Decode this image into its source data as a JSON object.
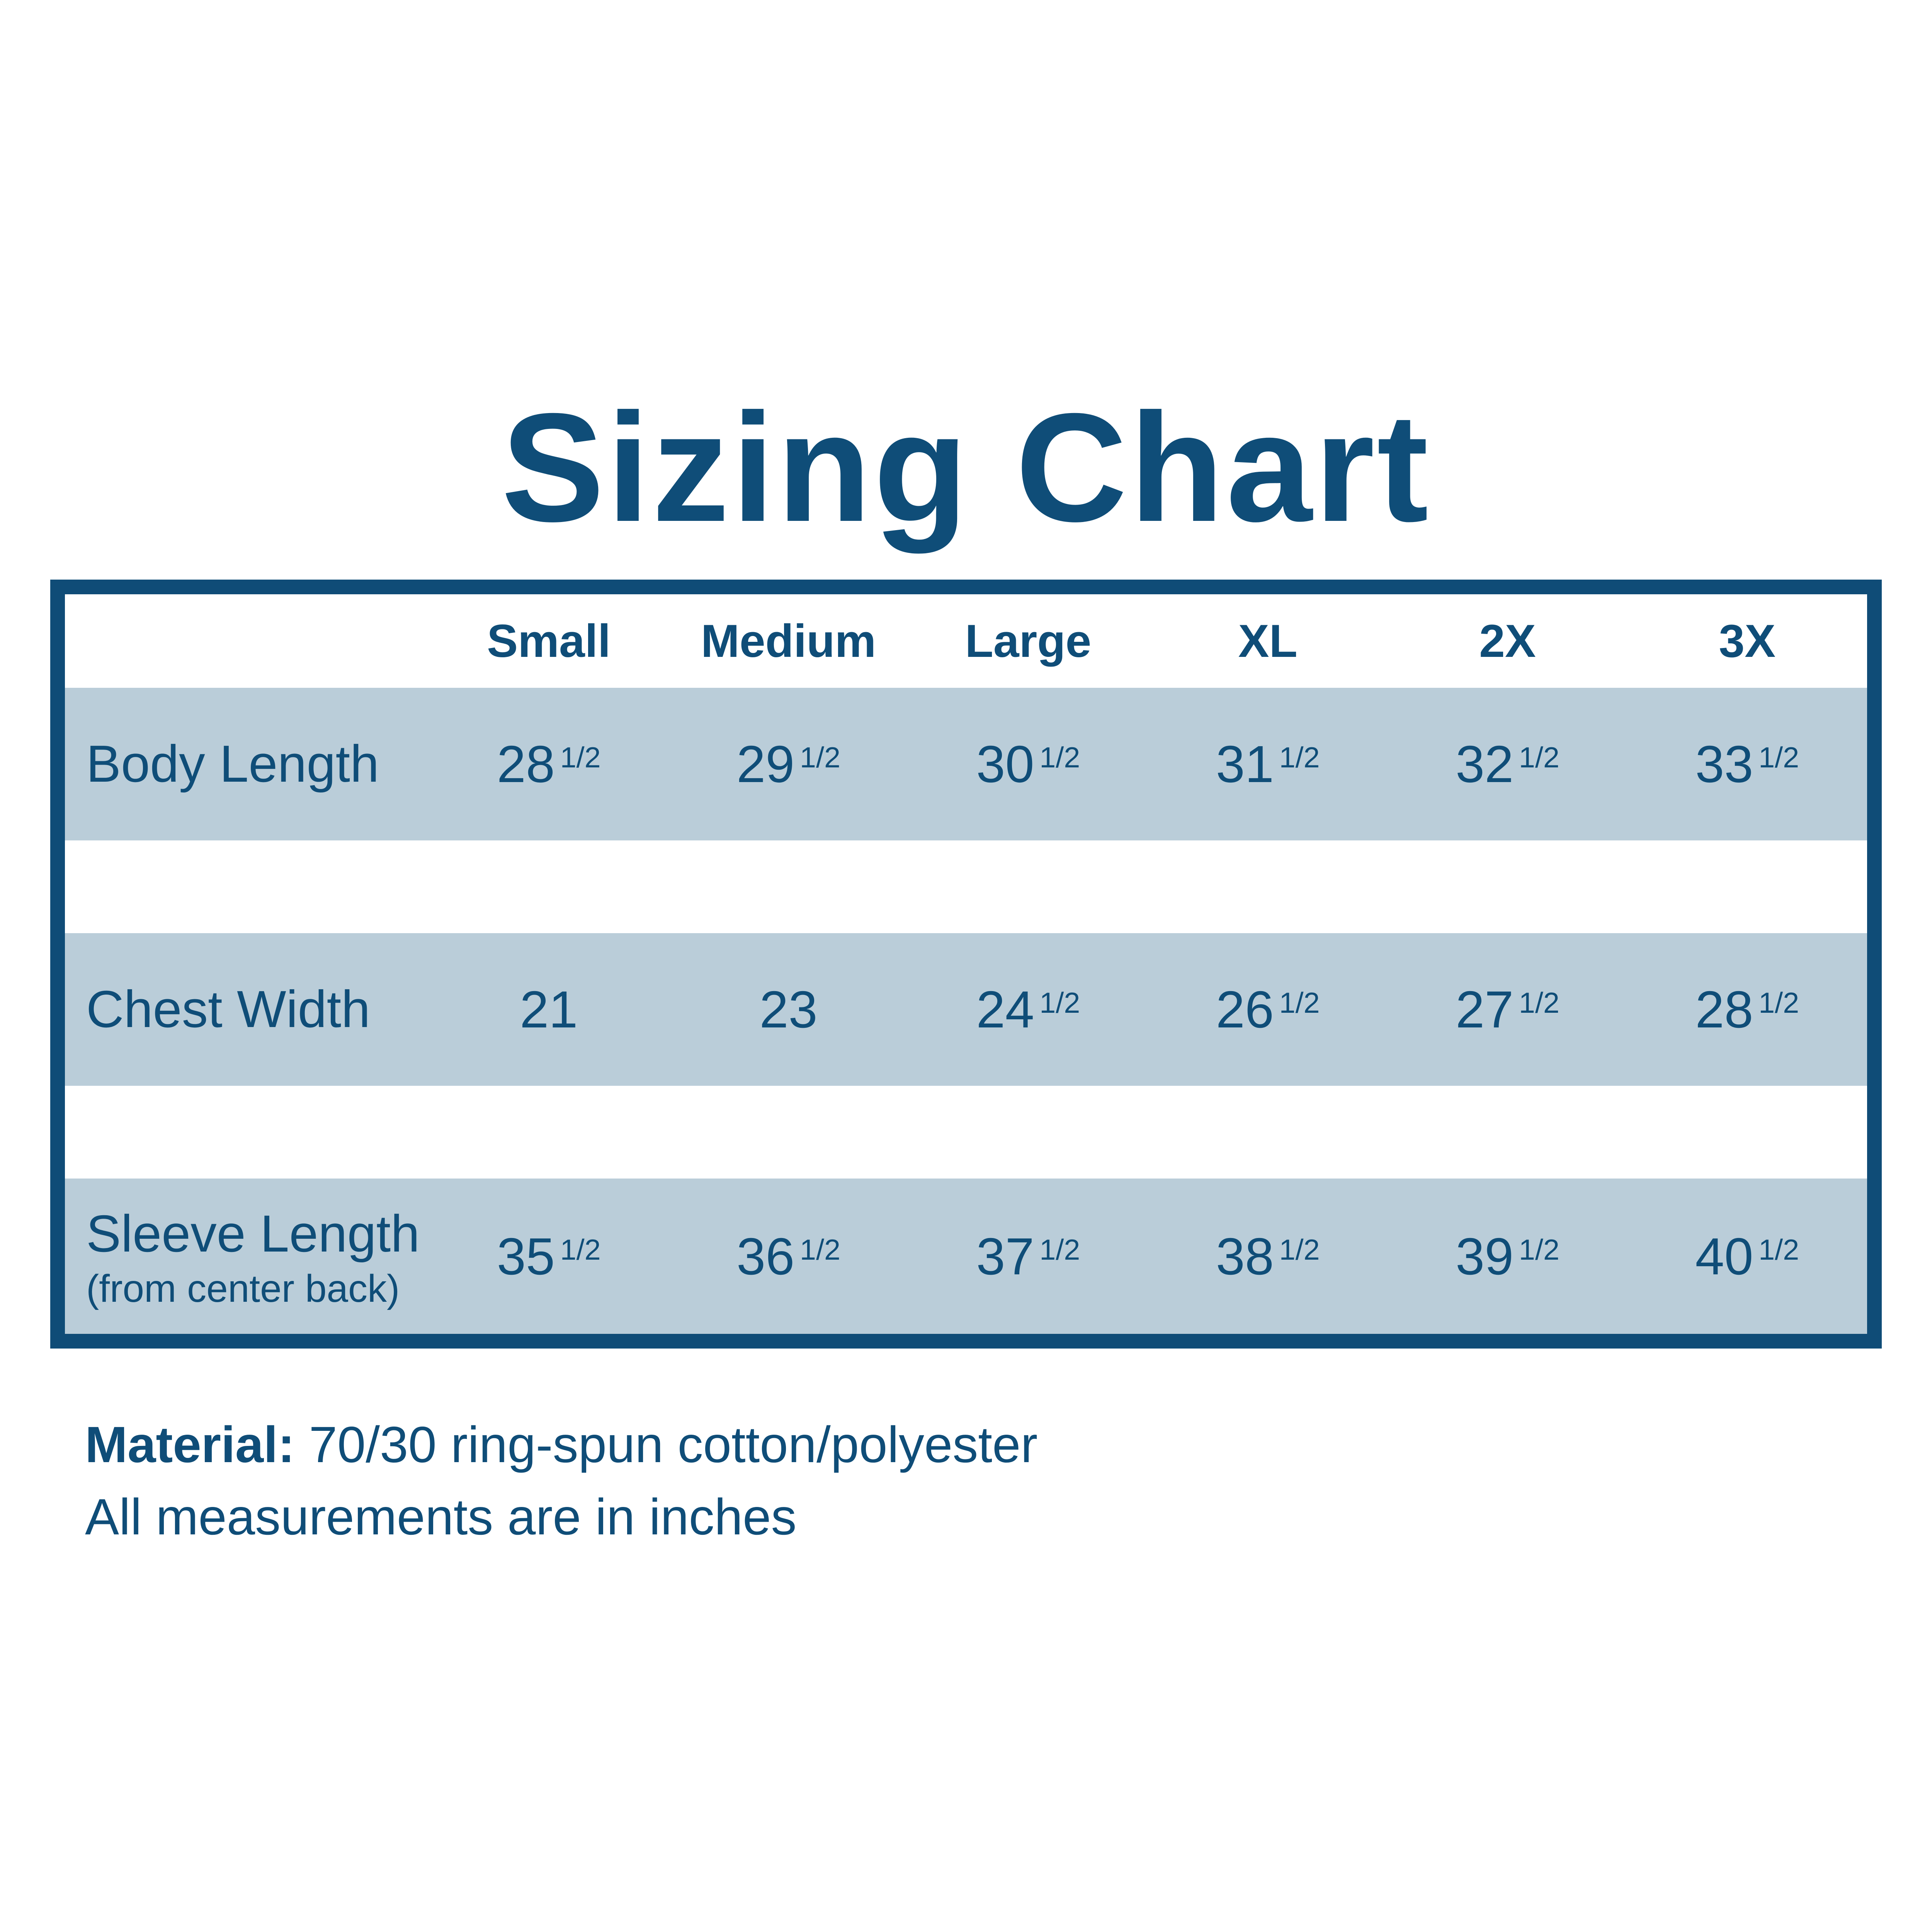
{
  "title": {
    "text": "Sizing Chart"
  },
  "colors": {
    "dark_blue": "#0F4D78",
    "border_blue": "#0F4C77",
    "row_light_blue": "#BACDD9",
    "background": "#FFFFFF"
  },
  "table": {
    "header": [
      "Small",
      "Medium",
      "Large",
      "XL",
      "2X",
      "3X"
    ],
    "rows": [
      {
        "label": "Body Length",
        "sublabel": "",
        "cells": [
          {
            "n": "28",
            "f": "1/2"
          },
          {
            "n": "29",
            "f": "1/2"
          },
          {
            "n": "30",
            "f": "1/2"
          },
          {
            "n": "31",
            "f": "1/2"
          },
          {
            "n": "32",
            "f": "1/2"
          },
          {
            "n": "33",
            "f": "1/2"
          }
        ]
      },
      {
        "label": "Chest Width",
        "sublabel": "",
        "cells": [
          {
            "n": "21",
            "f": ""
          },
          {
            "n": "23",
            "f": ""
          },
          {
            "n": "24",
            "f": "1/2"
          },
          {
            "n": "26",
            "f": "1/2"
          },
          {
            "n": "27",
            "f": "1/2"
          },
          {
            "n": "28",
            "f": "1/2"
          }
        ]
      },
      {
        "label": "Sleeve Length",
        "sublabel": "(from center back)",
        "cells": [
          {
            "n": "35",
            "f": "1/2"
          },
          {
            "n": "36",
            "f": "1/2"
          },
          {
            "n": "37",
            "f": "1/2"
          },
          {
            "n": "38",
            "f": "1/2"
          },
          {
            "n": "39",
            "f": "1/2"
          },
          {
            "n": "40",
            "f": "1/2"
          }
        ]
      }
    ]
  },
  "footer": {
    "material_label": "Material:",
    "material_text": "70/30 ring-spun cotton/polyester",
    "note": "All measurements are in inches"
  },
  "chart_data": {
    "type": "table",
    "title": "Sizing Chart",
    "columns": [
      "Small",
      "Medium",
      "Large",
      "XL",
      "2X",
      "3X"
    ],
    "rows": [
      {
        "label": "Body Length",
        "values_inches": [
          28.5,
          29.5,
          30.5,
          31.5,
          32.5,
          33.5
        ]
      },
      {
        "label": "Chest Width",
        "values_inches": [
          21,
          23,
          24.5,
          26.5,
          27.5,
          28.5
        ]
      },
      {
        "label": "Sleeve Length (from center back)",
        "values_inches": [
          35.5,
          36.5,
          37.5,
          38.5,
          39.5,
          40.5
        ]
      }
    ],
    "notes": [
      "Material: 70/30 ring-spun cotton/polyester",
      "All measurements are in inches"
    ],
    "layout": {
      "striped_rows": true,
      "grid": "horizontal-bands-only",
      "units": "inches"
    }
  }
}
